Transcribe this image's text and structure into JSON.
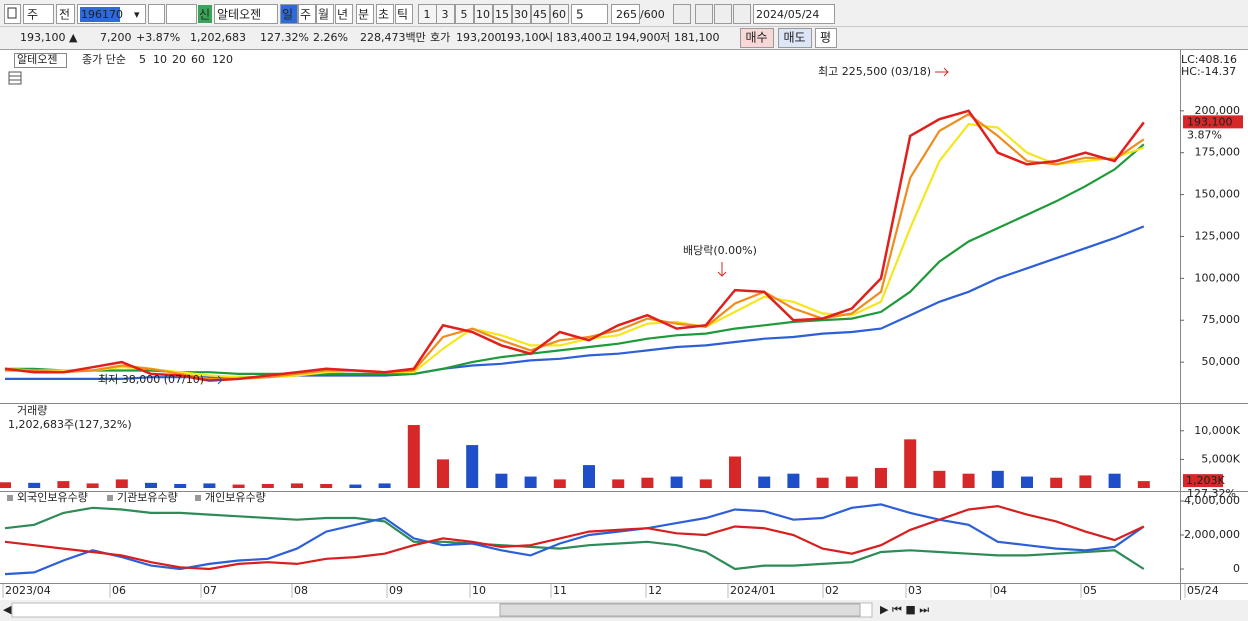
{
  "toolbar": {
    "market": "주",
    "prev": "전",
    "code": "196170",
    "name_badge": "신",
    "name": "알테오젠",
    "periods": [
      "일",
      "주",
      "월",
      "년",
      "분",
      "초",
      "틱"
    ],
    "intervals": [
      "1",
      "3",
      "5",
      "10",
      "15",
      "30",
      "45",
      "60"
    ],
    "unit": "5",
    "count": "265",
    "max": "/600",
    "date": "2024/05/24"
  },
  "quote": {
    "price": "193,100 ▲",
    "change": "7,200",
    "change_pct": "+3.87%",
    "volume": "1,202,683",
    "volume_ratio": "127.32%",
    "turnover": "2.26%",
    "amount": "228,473백만",
    "ask_label": "호가",
    "ask": "193,200",
    "bid": "193,100",
    "open_label": "시",
    "open": "183,400",
    "high_label": "고",
    "high": "194,900",
    "low_label": "저",
    "low": "181,100",
    "buttons": [
      "매수",
      "매도",
      "평"
    ]
  },
  "price_panel": {
    "name": "알테오젠",
    "ma_label": "종가 단순",
    "series": [
      {
        "name": "5",
        "color": "#e0201c",
        "values": [
          46000,
          44000,
          44000,
          47000,
          50000,
          43000,
          42000,
          39000,
          40000,
          42000,
          44000,
          46000,
          45000,
          44000,
          46000,
          72000,
          68000,
          60000,
          55000,
          68000,
          63000,
          72000,
          78000,
          70000,
          72000,
          93000,
          92000,
          75000,
          76000,
          82000,
          100000,
          185000,
          195000,
          200000,
          175000,
          168000,
          170000,
          175000,
          170000,
          193100
        ]
      },
      {
        "name": "10",
        "color": "#f08c1e",
        "values": [
          45000,
          45000,
          44000,
          45000,
          48000,
          46000,
          43000,
          40000,
          40000,
          41000,
          43000,
          45000,
          45000,
          44000,
          45000,
          65000,
          70000,
          63000,
          57000,
          63000,
          65000,
          69000,
          76000,
          73000,
          71000,
          85000,
          92000,
          82000,
          76000,
          79000,
          92000,
          160000,
          188000,
          198000,
          185000,
          170000,
          168000,
          172000,
          171000,
          183000
        ]
      },
      {
        "name": "20",
        "color": "#f5e61e",
        "values": [
          46000,
          45000,
          45000,
          45000,
          47000,
          46000,
          44000,
          42000,
          41000,
          41000,
          42000,
          44000,
          45000,
          44000,
          44000,
          58000,
          70000,
          66000,
          60000,
          60000,
          64000,
          66000,
          73000,
          74000,
          71000,
          80000,
          89000,
          86000,
          79000,
          78000,
          86000,
          130000,
          170000,
          192000,
          190000,
          175000,
          168000,
          170000,
          172000,
          178000
        ]
      },
      {
        "name": "60",
        "color": "#1f9a3a",
        "values": [
          46000,
          46000,
          45000,
          45000,
          45000,
          45000,
          44000,
          44000,
          43000,
          43000,
          43000,
          43000,
          43000,
          43000,
          43000,
          46000,
          50000,
          53000,
          55000,
          57000,
          59000,
          61000,
          64000,
          66000,
          67000,
          70000,
          72000,
          74000,
          75000,
          76000,
          80000,
          92000,
          110000,
          122000,
          130000,
          138000,
          146000,
          155000,
          165000,
          180000
        ]
      },
      {
        "name": "120",
        "color": "#2d5fd8",
        "values": [
          40000,
          40000,
          40000,
          40000,
          40000,
          41000,
          41000,
          41000,
          41000,
          41000,
          42000,
          42000,
          42000,
          42000,
          43000,
          46000,
          48000,
          49000,
          51000,
          52000,
          54000,
          55000,
          57000,
          59000,
          60000,
          62000,
          64000,
          65000,
          67000,
          68000,
          70000,
          78000,
          86000,
          92000,
          100000,
          106000,
          112000,
          118000,
          124000,
          131000
        ]
      }
    ],
    "ylim": [
      26200,
      235100
    ],
    "yticks": [
      {
        "value": 50000,
        "label": "50,000"
      },
      {
        "value": 75000,
        "label": "75,000"
      },
      {
        "value": 100000,
        "label": "100,000"
      },
      {
        "value": 125000,
        "label": "125,000"
      },
      {
        "value": 150000,
        "label": "150,000"
      },
      {
        "value": 175000,
        "label": "175,000"
      },
      {
        "value": 200000,
        "label": "200,000"
      }
    ],
    "lc": "LC:408.16",
    "hc": "HC:-14.37",
    "current": {
      "value": 193100,
      "label": "193,100"
    },
    "current_pct": "3.87%",
    "high_note": "최고 225,500 (03/18)",
    "low_note": "최저 38,000 (07/10)",
    "dividend_note": "배당락(0.00%)"
  },
  "volume_panel": {
    "name": "거래량",
    "info": "1,202,683주(127,32%)",
    "up_color": "#d62828",
    "down_color": "#1f4fc8",
    "values": [
      1000,
      900,
      1200,
      800,
      1500,
      900,
      700,
      800,
      600,
      700,
      800,
      700,
      600,
      800,
      11000,
      5000,
      7500,
      2500,
      2000,
      1500,
      4000,
      1500,
      1800,
      2000,
      1500,
      5500,
      2000,
      2500,
      1800,
      2000,
      3500,
      8500,
      3000,
      2500,
      3000,
      2000,
      1800,
      2200,
      2500,
      1203
    ],
    "ylim": [
      0,
      14500
    ],
    "yticks": [
      {
        "value": 5000,
        "label": "5,000K"
      },
      {
        "value": 10000,
        "label": "10,000K"
      }
    ],
    "current": {
      "value": 1203,
      "label": "1,203K"
    },
    "current_pct": "127,32%"
  },
  "holdings_panel": {
    "series": [
      {
        "name": "외국인보유수량",
        "color": "#d81e1e",
        "values": [
          1600000,
          1400000,
          1200000,
          1000000,
          800000,
          400000,
          100000,
          0,
          300000,
          400000,
          300000,
          600000,
          700000,
          900000,
          1400000,
          1800000,
          1600000,
          1300000,
          1400000,
          1800000,
          2200000,
          2300000,
          2400000,
          2100000,
          2000000,
          2500000,
          2400000,
          2000000,
          1200000,
          900000,
          1400000,
          2300000,
          2900000,
          3500000,
          3700000,
          3200000,
          2800000,
          2200000,
          1700000,
          2500000
        ]
      },
      {
        "name": "기관보유수량",
        "color": "#2d5fd8",
        "values": [
          -300000,
          -200000,
          500000,
          1100000,
          700000,
          200000,
          0,
          300000,
          500000,
          600000,
          1200000,
          2200000,
          2600000,
          3000000,
          1800000,
          1400000,
          1500000,
          1100000,
          800000,
          1500000,
          2000000,
          2200000,
          2400000,
          2700000,
          3000000,
          3500000,
          3400000,
          2900000,
          3000000,
          3600000,
          3800000,
          3300000,
          2900000,
          2600000,
          1600000,
          1400000,
          1200000,
          1100000,
          1300000,
          2500000
        ]
      },
      {
        "name": "개인보유수량",
        "color": "#2e8b57",
        "values": [
          2400000,
          2600000,
          3300000,
          3600000,
          3500000,
          3300000,
          3300000,
          3200000,
          3100000,
          3000000,
          2900000,
          3000000,
          3000000,
          2800000,
          1600000,
          1600000,
          1500000,
          1400000,
          1300000,
          1200000,
          1400000,
          1500000,
          1600000,
          1400000,
          1000000,
          0,
          200000,
          200000,
          300000,
          400000,
          1000000,
          1100000,
          1000000,
          900000,
          800000,
          800000,
          900000,
          1000000,
          1100000,
          0
        ]
      }
    ],
    "ylim": [
      -765000,
      4530000
    ],
    "yticks": [
      0,
      {
        "value": 2000000,
        "label": "2,000,000"
      },
      {
        "value": 4000000,
        "label": "4,000,000"
      }
    ]
  },
  "x_labels": [
    "2023/04",
    "06",
    "07",
    "08",
    "09",
    "10",
    "11",
    "12",
    "2024/01",
    "02",
    "03",
    "04",
    "05",
    "05/24"
  ]
}
